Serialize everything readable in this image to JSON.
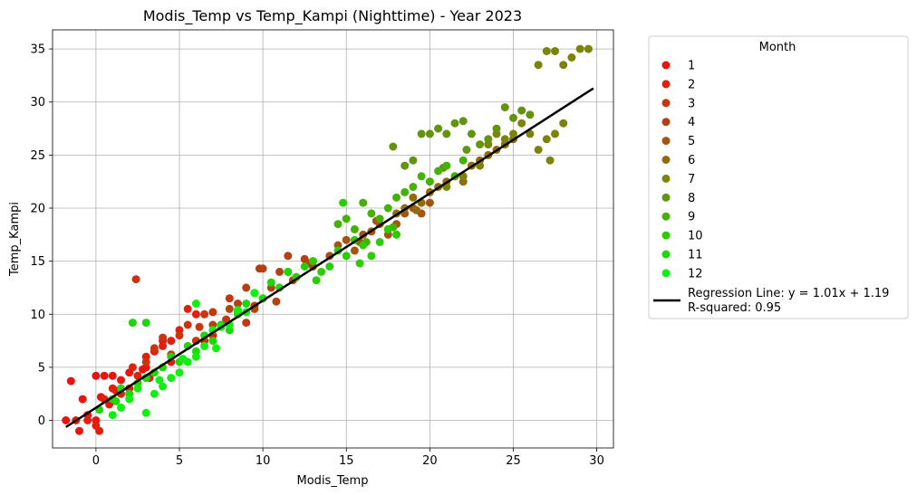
{
  "chart_data": {
    "type": "scatter",
    "title": "Modis_Temp vs Temp_Kampi (Nighttime) - Year 2023",
    "xlabel": "Modis_Temp",
    "ylabel": "Temp_Kampi",
    "xlim": [
      -2.6,
      31.0
    ],
    "ylim": [
      -2.6,
      36.8
    ],
    "xticks": [
      0,
      5,
      10,
      15,
      20,
      25,
      30
    ],
    "yticks": [
      0,
      5,
      10,
      15,
      20,
      25,
      30,
      35
    ],
    "grid": true,
    "legend": {
      "title": "Month",
      "placement": "outside-right",
      "regression_label_line1": "Regression Line: y = 1.01x + 1.19",
      "regression_label_line2": "R-squared: 0.95"
    },
    "series": [
      {
        "name": "1",
        "color": "#e8140e",
        "points": [
          [
            -1.8,
            0
          ],
          [
            -1.5,
            3.7
          ],
          [
            -1,
            -1
          ],
          [
            -0.8,
            2
          ],
          [
            0,
            0
          ],
          [
            0,
            4.2
          ],
          [
            0.5,
            4.2
          ],
          [
            0.8,
            1.5
          ],
          [
            1,
            4.2
          ],
          [
            1.5,
            3.8
          ],
          [
            2,
            4.5
          ],
          [
            2.5,
            3.5
          ],
          [
            3,
            5
          ],
          [
            3.5,
            6.5
          ],
          [
            4,
            7.5
          ],
          [
            0.3,
            2.2
          ],
          [
            -0.5,
            0.5
          ],
          [
            1.2,
            2.8
          ],
          [
            2.8,
            4.8
          ],
          [
            4.5,
            5.5
          ]
        ]
      },
      {
        "name": "2",
        "color": "#e0200c",
        "points": [
          [
            -1.2,
            0
          ],
          [
            -0.5,
            0
          ],
          [
            0,
            -0.5
          ],
          [
            0.5,
            2
          ],
          [
            1,
            3
          ],
          [
            1.5,
            2.5
          ],
          [
            2,
            3
          ],
          [
            2.5,
            4.2
          ],
          [
            3,
            6
          ],
          [
            3.5,
            6.5
          ],
          [
            4,
            7
          ],
          [
            4.5,
            7.5
          ],
          [
            5,
            8.5
          ],
          [
            5.5,
            10.5
          ],
          [
            6,
            10
          ],
          [
            6.5,
            7.5
          ],
          [
            7,
            8
          ],
          [
            0.2,
            -1
          ],
          [
            2.2,
            5
          ],
          [
            3.2,
            4
          ]
        ]
      },
      {
        "name": "3",
        "color": "#c9350e",
        "points": [
          [
            2.4,
            13.3
          ],
          [
            3.5,
            6.8
          ],
          [
            4,
            7.8
          ],
          [
            4.5,
            6.2
          ],
          [
            5,
            8
          ],
          [
            5.5,
            9
          ],
          [
            6,
            7.5
          ],
          [
            6.5,
            10
          ],
          [
            7,
            10.2
          ],
          [
            7.5,
            9
          ],
          [
            8,
            11.5
          ],
          [
            8.5,
            10.2
          ],
          [
            9,
            9.2
          ],
          [
            9.5,
            10.8
          ],
          [
            10,
            11.5
          ],
          [
            3,
            5.5
          ],
          [
            6.2,
            8.8
          ],
          [
            7.8,
            9.5
          ]
        ]
      },
      {
        "name": "4",
        "color": "#b24212",
        "points": [
          [
            7,
            9
          ],
          [
            8,
            10.5
          ],
          [
            8.5,
            11
          ],
          [
            9,
            12.5
          ],
          [
            9.5,
            10.5
          ],
          [
            9.8,
            14.3
          ],
          [
            10,
            14.3
          ],
          [
            10.5,
            12.5
          ],
          [
            11,
            14
          ],
          [
            11.5,
            15.5
          ],
          [
            12,
            13.5
          ],
          [
            12.5,
            15.2
          ],
          [
            13,
            14.5
          ],
          [
            10.8,
            11.2
          ],
          [
            11.8,
            13.2
          ],
          [
            12.8,
            14.8
          ]
        ]
      },
      {
        "name": "5",
        "color": "#a35412",
        "points": [
          [
            13,
            15
          ],
          [
            14,
            15.5
          ],
          [
            14.5,
            16.5
          ],
          [
            15,
            17
          ],
          [
            15.5,
            16
          ],
          [
            16,
            17.5
          ],
          [
            16.5,
            17.8
          ],
          [
            17,
            18.5
          ],
          [
            17.5,
            17.5
          ],
          [
            18,
            18.5
          ],
          [
            18.5,
            19.5
          ],
          [
            19,
            20
          ],
          [
            19.5,
            19.5
          ],
          [
            20,
            20.5
          ],
          [
            16.8,
            18.8
          ],
          [
            15.8,
            16.8
          ]
        ]
      },
      {
        "name": "6",
        "color": "#906c0a",
        "points": [
          [
            17.5,
            18
          ],
          [
            18,
            19.5
          ],
          [
            18.5,
            20
          ],
          [
            19,
            21
          ],
          [
            19.5,
            20.5
          ],
          [
            20,
            21.5
          ],
          [
            20.5,
            22
          ],
          [
            21,
            22.5
          ],
          [
            21.5,
            23
          ],
          [
            22,
            22.5
          ],
          [
            22.5,
            24
          ],
          [
            23,
            24.5
          ],
          [
            23.5,
            25
          ],
          [
            24,
            25.5
          ],
          [
            24.5,
            26
          ],
          [
            25,
            26.5
          ],
          [
            19.2,
            19.8
          ]
        ]
      },
      {
        "name": "7",
        "color": "#7b8408",
        "points": [
          [
            21,
            22
          ],
          [
            22,
            23
          ],
          [
            23,
            24
          ],
          [
            23.5,
            26
          ],
          [
            24,
            27
          ],
          [
            24.5,
            26.5
          ],
          [
            25,
            27
          ],
          [
            25.5,
            28
          ],
          [
            26,
            27
          ],
          [
            26.5,
            25.5
          ],
          [
            27,
            26.5
          ],
          [
            27.5,
            27
          ],
          [
            28,
            28
          ],
          [
            26.5,
            33.5
          ],
          [
            27,
            34.8
          ],
          [
            27.5,
            34.8
          ],
          [
            28,
            33.5
          ],
          [
            28.5,
            34.2
          ],
          [
            29,
            35
          ],
          [
            29.5,
            35
          ],
          [
            27.2,
            24.5
          ]
        ]
      },
      {
        "name": "8",
        "color": "#639410",
        "points": [
          [
            18.5,
            24
          ],
          [
            19,
            24.5
          ],
          [
            19.5,
            27
          ],
          [
            20,
            27
          ],
          [
            20.5,
            27.5
          ],
          [
            21,
            27
          ],
          [
            21.5,
            28
          ],
          [
            22,
            28.2
          ],
          [
            22.5,
            27
          ],
          [
            23,
            26
          ],
          [
            23.5,
            26.5
          ],
          [
            24,
            27.5
          ],
          [
            24.5,
            29.5
          ],
          [
            25,
            28.5
          ],
          [
            25.5,
            29.2
          ],
          [
            26,
            28.8
          ],
          [
            22.2,
            25.5
          ],
          [
            20.8,
            23.8
          ],
          [
            17.8,
            25.8
          ]
        ]
      },
      {
        "name": "9",
        "color": "#45b005",
        "points": [
          [
            14.5,
            18.5
          ],
          [
            15,
            19
          ],
          [
            15.5,
            18
          ],
          [
            16,
            20.5
          ],
          [
            16.5,
            19.5
          ],
          [
            17,
            19
          ],
          [
            17.5,
            20
          ],
          [
            18,
            21
          ],
          [
            18.5,
            21.5
          ],
          [
            19,
            22
          ],
          [
            19.5,
            23
          ],
          [
            20,
            22.5
          ],
          [
            20.5,
            23.5
          ],
          [
            21,
            24
          ],
          [
            21.5,
            23
          ],
          [
            22,
            24.5
          ],
          [
            16.2,
            16.8
          ],
          [
            17.8,
            18.2
          ]
        ]
      },
      {
        "name": "10",
        "color": "#2ccc04",
        "points": [
          [
            11.5,
            14
          ],
          [
            12,
            13.5
          ],
          [
            12.5,
            14.5
          ],
          [
            13,
            15
          ],
          [
            13.5,
            14
          ],
          [
            14,
            14.5
          ],
          [
            14.5,
            16
          ],
          [
            15,
            15.5
          ],
          [
            15.5,
            17
          ],
          [
            16,
            16.5
          ],
          [
            16.5,
            15.5
          ],
          [
            17,
            16.8
          ],
          [
            17.5,
            18
          ],
          [
            18,
            17.5
          ],
          [
            14.8,
            20.5
          ],
          [
            13.2,
            13.2
          ],
          [
            15.8,
            14.8
          ]
        ]
      },
      {
        "name": "11",
        "color": "#1cd809",
        "points": [
          [
            0.2,
            1
          ],
          [
            1,
            2
          ],
          [
            1.5,
            3
          ],
          [
            2,
            2.5
          ],
          [
            2.5,
            3.5
          ],
          [
            3,
            4
          ],
          [
            3.5,
            4.5
          ],
          [
            4,
            5
          ],
          [
            4.5,
            6
          ],
          [
            5,
            5.5
          ],
          [
            5.5,
            7
          ],
          [
            6,
            6.5
          ],
          [
            6.5,
            8
          ],
          [
            7,
            7.5
          ],
          [
            7.5,
            9
          ],
          [
            8,
            8.5
          ],
          [
            8.5,
            10
          ],
          [
            9,
            11
          ],
          [
            9.5,
            12
          ],
          [
            10,
            11.5
          ],
          [
            10.5,
            13
          ],
          [
            11,
            12.5
          ],
          [
            11.5,
            14
          ],
          [
            2.2,
            9.2
          ],
          [
            3,
            9.2
          ],
          [
            1.2,
            1.8
          ]
        ]
      },
      {
        "name": "12",
        "color": "#10f010",
        "points": [
          [
            1,
            0.5
          ],
          [
            1.5,
            1.2
          ],
          [
            2,
            2
          ],
          [
            2.5,
            3
          ],
          [
            3,
            0.7
          ],
          [
            3.5,
            2.5
          ],
          [
            4,
            3.2
          ],
          [
            4.5,
            4
          ],
          [
            5,
            4.5
          ],
          [
            5.5,
            5.5
          ],
          [
            6,
            6
          ],
          [
            6.5,
            7
          ],
          [
            7,
            8.5
          ],
          [
            7.5,
            8.8
          ],
          [
            8,
            9
          ],
          [
            8.5,
            10.4
          ],
          [
            9,
            10.2
          ],
          [
            9.5,
            12
          ],
          [
            6,
            11
          ],
          [
            3.8,
            3.8
          ],
          [
            5.2,
            5.8
          ],
          [
            7.2,
            6.8
          ]
        ]
      }
    ],
    "regression": {
      "slope": 1.01,
      "intercept": 1.19,
      "x_range": [
        -1.8,
        29.8
      ],
      "color": "#000000"
    }
  }
}
